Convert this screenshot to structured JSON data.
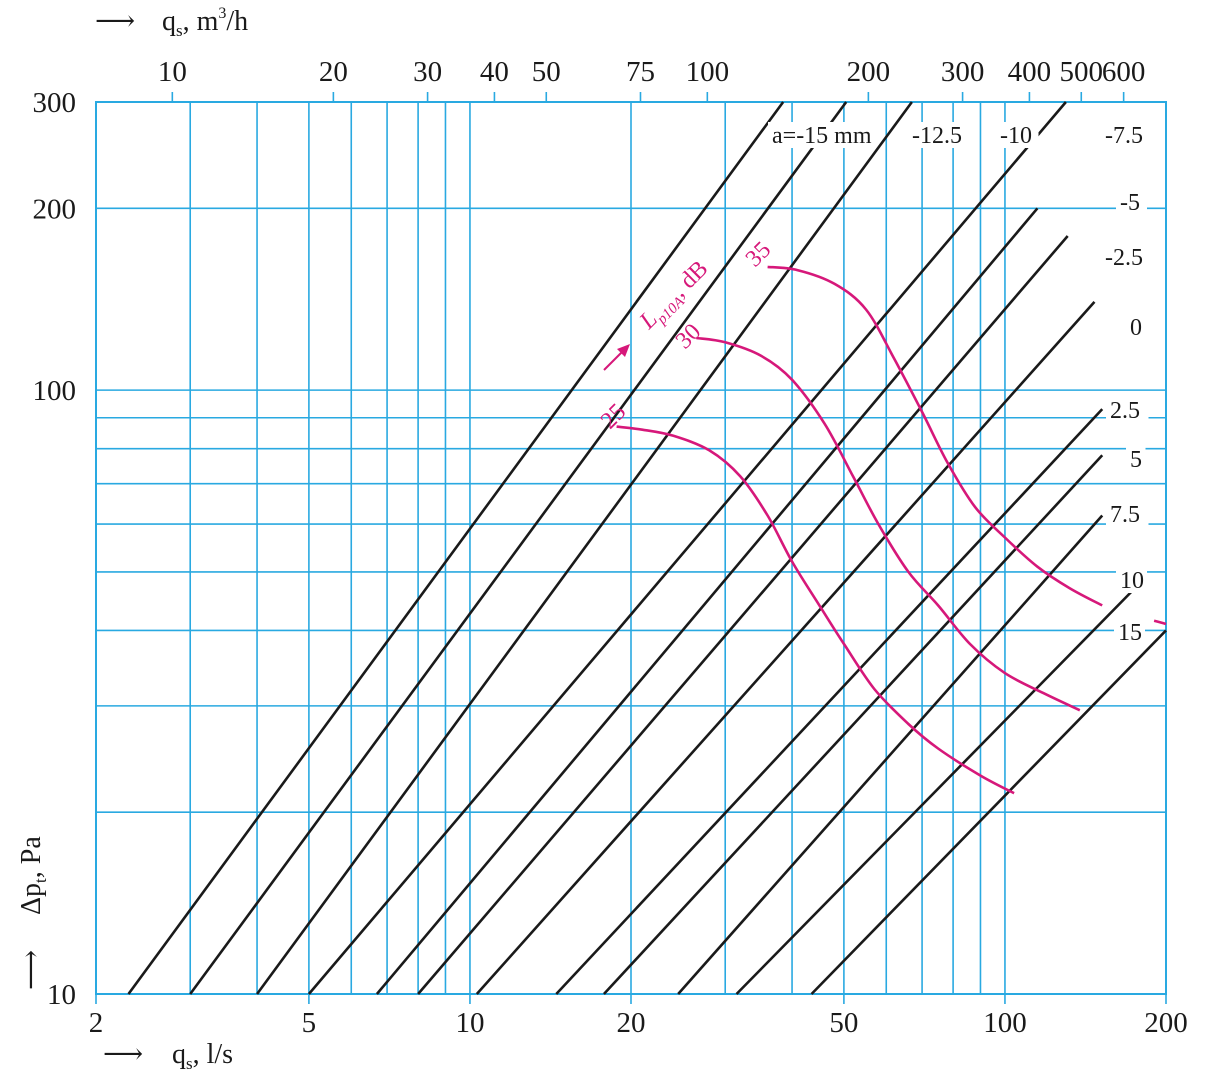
{
  "chart_data": {
    "type": "line",
    "x_scale": "log",
    "y_scale": "log",
    "xlim": [
      2,
      200
    ],
    "ylim": [
      10,
      300
    ],
    "grid": true,
    "grid_color": "#29a9e1",
    "line_color": "#1a1a1a",
    "noise_color": "#d6187a",
    "x_bottom_label": {
      "arrow": "⟶",
      "prefix": "q",
      "sub": "s",
      "suffix": ", l/s"
    },
    "x_top_label": {
      "arrow": "⟶",
      "prefix": "q",
      "sub": "s",
      "suffix": ", m",
      "sup": "3",
      "suffix2": "/h"
    },
    "y_label": {
      "arrow": "⟶",
      "prefix": "Δp",
      "sub": "t",
      "suffix": ", Pa"
    },
    "x_bottom_ticks": [
      {
        "value": 2,
        "label": "2"
      },
      {
        "value": 5,
        "label": "5"
      },
      {
        "value": 10,
        "label": "10"
      },
      {
        "value": 20,
        "label": "20"
      },
      {
        "value": 50,
        "label": "50"
      },
      {
        "value": 100,
        "label": "100"
      },
      {
        "value": 200,
        "label": "200"
      }
    ],
    "x_top_ticks": [
      {
        "value": 10,
        "label": "10"
      },
      {
        "value": 20,
        "label": "20"
      },
      {
        "value": 30,
        "label": "30"
      },
      {
        "value": 40,
        "label": "40"
      },
      {
        "value": 50,
        "label": "50"
      },
      {
        "value": 75,
        "label": "75"
      },
      {
        "value": 100,
        "label": "100"
      },
      {
        "value": 200,
        "label": "200"
      },
      {
        "value": 300,
        "label": "300"
      },
      {
        "value": 400,
        "label": "400"
      },
      {
        "value": 500,
        "label": "500"
      },
      {
        "value": 600,
        "label": "600"
      }
    ],
    "y_ticks": [
      {
        "value": 10,
        "label": "10"
      },
      {
        "value": 100,
        "label": "100"
      },
      {
        "value": 200,
        "label": "200"
      },
      {
        "value": 300,
        "label": "300"
      }
    ],
    "x_grid": [
      3,
      4,
      5,
      6,
      7,
      8,
      9,
      10,
      20,
      30,
      40,
      50,
      60,
      70,
      80,
      90,
      100
    ],
    "y_grid": [
      20,
      30,
      40,
      50,
      60,
      70,
      80,
      90,
      100,
      200
    ],
    "series": [
      {
        "name": "a=-15 mm",
        "x": [
          2.3,
          38.5
        ],
        "y": [
          10,
          300
        ]
      },
      {
        "name": "-12.5",
        "x": [
          3.0,
          50.5
        ],
        "y": [
          10,
          300
        ]
      },
      {
        "name": "-10",
        "x": [
          4.0,
          67
        ],
        "y": [
          10,
          300
        ]
      },
      {
        "name": "-7.5",
        "x": [
          5.0,
          130
        ],
        "y": [
          10,
          300
        ]
      },
      {
        "name": "-5",
        "x": [
          6.7,
          115
        ],
        "y": [
          10,
          200
        ]
      },
      {
        "name": "-2.5",
        "x": [
          8.0,
          131
        ],
        "y": [
          10,
          180
        ]
      },
      {
        "name": "0",
        "x": [
          10.3,
          147
        ],
        "y": [
          10,
          140
        ]
      },
      {
        "name": "2.5",
        "x": [
          14.5,
          152
        ],
        "y": [
          10,
          93
        ]
      },
      {
        "name": "5",
        "x": [
          17.8,
          152
        ],
        "y": [
          10,
          78
        ]
      },
      {
        "name": "7.5",
        "x": [
          24.5,
          152
        ],
        "y": [
          10,
          62
        ]
      },
      {
        "name": "10",
        "x": [
          31.5,
          175
        ],
        "y": [
          10,
          47
        ]
      },
      {
        "name": "15",
        "x": [
          43.5,
          200
        ],
        "y": [
          10,
          40
        ]
      }
    ],
    "noise_curves": [
      {
        "name": "25",
        "x": [
          18.8,
          21,
          24,
          28,
          32,
          36,
          40,
          45,
          50,
          57,
          66,
          75,
          90,
          104
        ],
        "y": [
          87,
          86,
          84,
          79.5,
          72,
          62,
          52,
          44,
          38,
          32,
          28,
          25.5,
          23,
          21.5
        ]
      },
      {
        "name": "30",
        "x": [
          26.5,
          30,
          35,
          40,
          46,
          52,
          58,
          66,
          75,
          86,
          100,
          118,
          138
        ],
        "y": [
          122,
          120,
          114,
          104,
          88,
          72,
          60,
          50,
          44,
          38,
          34,
          31.5,
          29.5
        ]
      },
      {
        "name": "35",
        "x": [
          36,
          41,
          48,
          55,
          62,
          70,
          78,
          88,
          100,
          115,
          132,
          152
        ],
        "y": [
          160,
          158,
          150,
          136,
          113,
          92,
          76,
          64,
          57,
          51,
          47,
          44
        ]
      },
      {
        "name": "",
        "x": [
          190,
          200
        ],
        "y": [
          41.5,
          41
        ]
      }
    ],
    "series_labels": [
      {
        "text": "a=-15 mm"
      },
      {
        "text": "-12.5"
      },
      {
        "text": "-10"
      },
      {
        "text": "-7.5"
      },
      {
        "text": "-5"
      },
      {
        "text": "-2.5"
      },
      {
        "text": "0"
      },
      {
        "text": "2.5"
      },
      {
        "text": "5"
      },
      {
        "text": "7.5"
      },
      {
        "text": "10"
      },
      {
        "text": "15"
      }
    ],
    "noise_labels": [
      {
        "text": "25"
      },
      {
        "text": "30"
      },
      {
        "text": "35"
      }
    ],
    "noise_title": {
      "prefix": "L",
      "sub": "p10A",
      "suffix": ", dB"
    }
  }
}
